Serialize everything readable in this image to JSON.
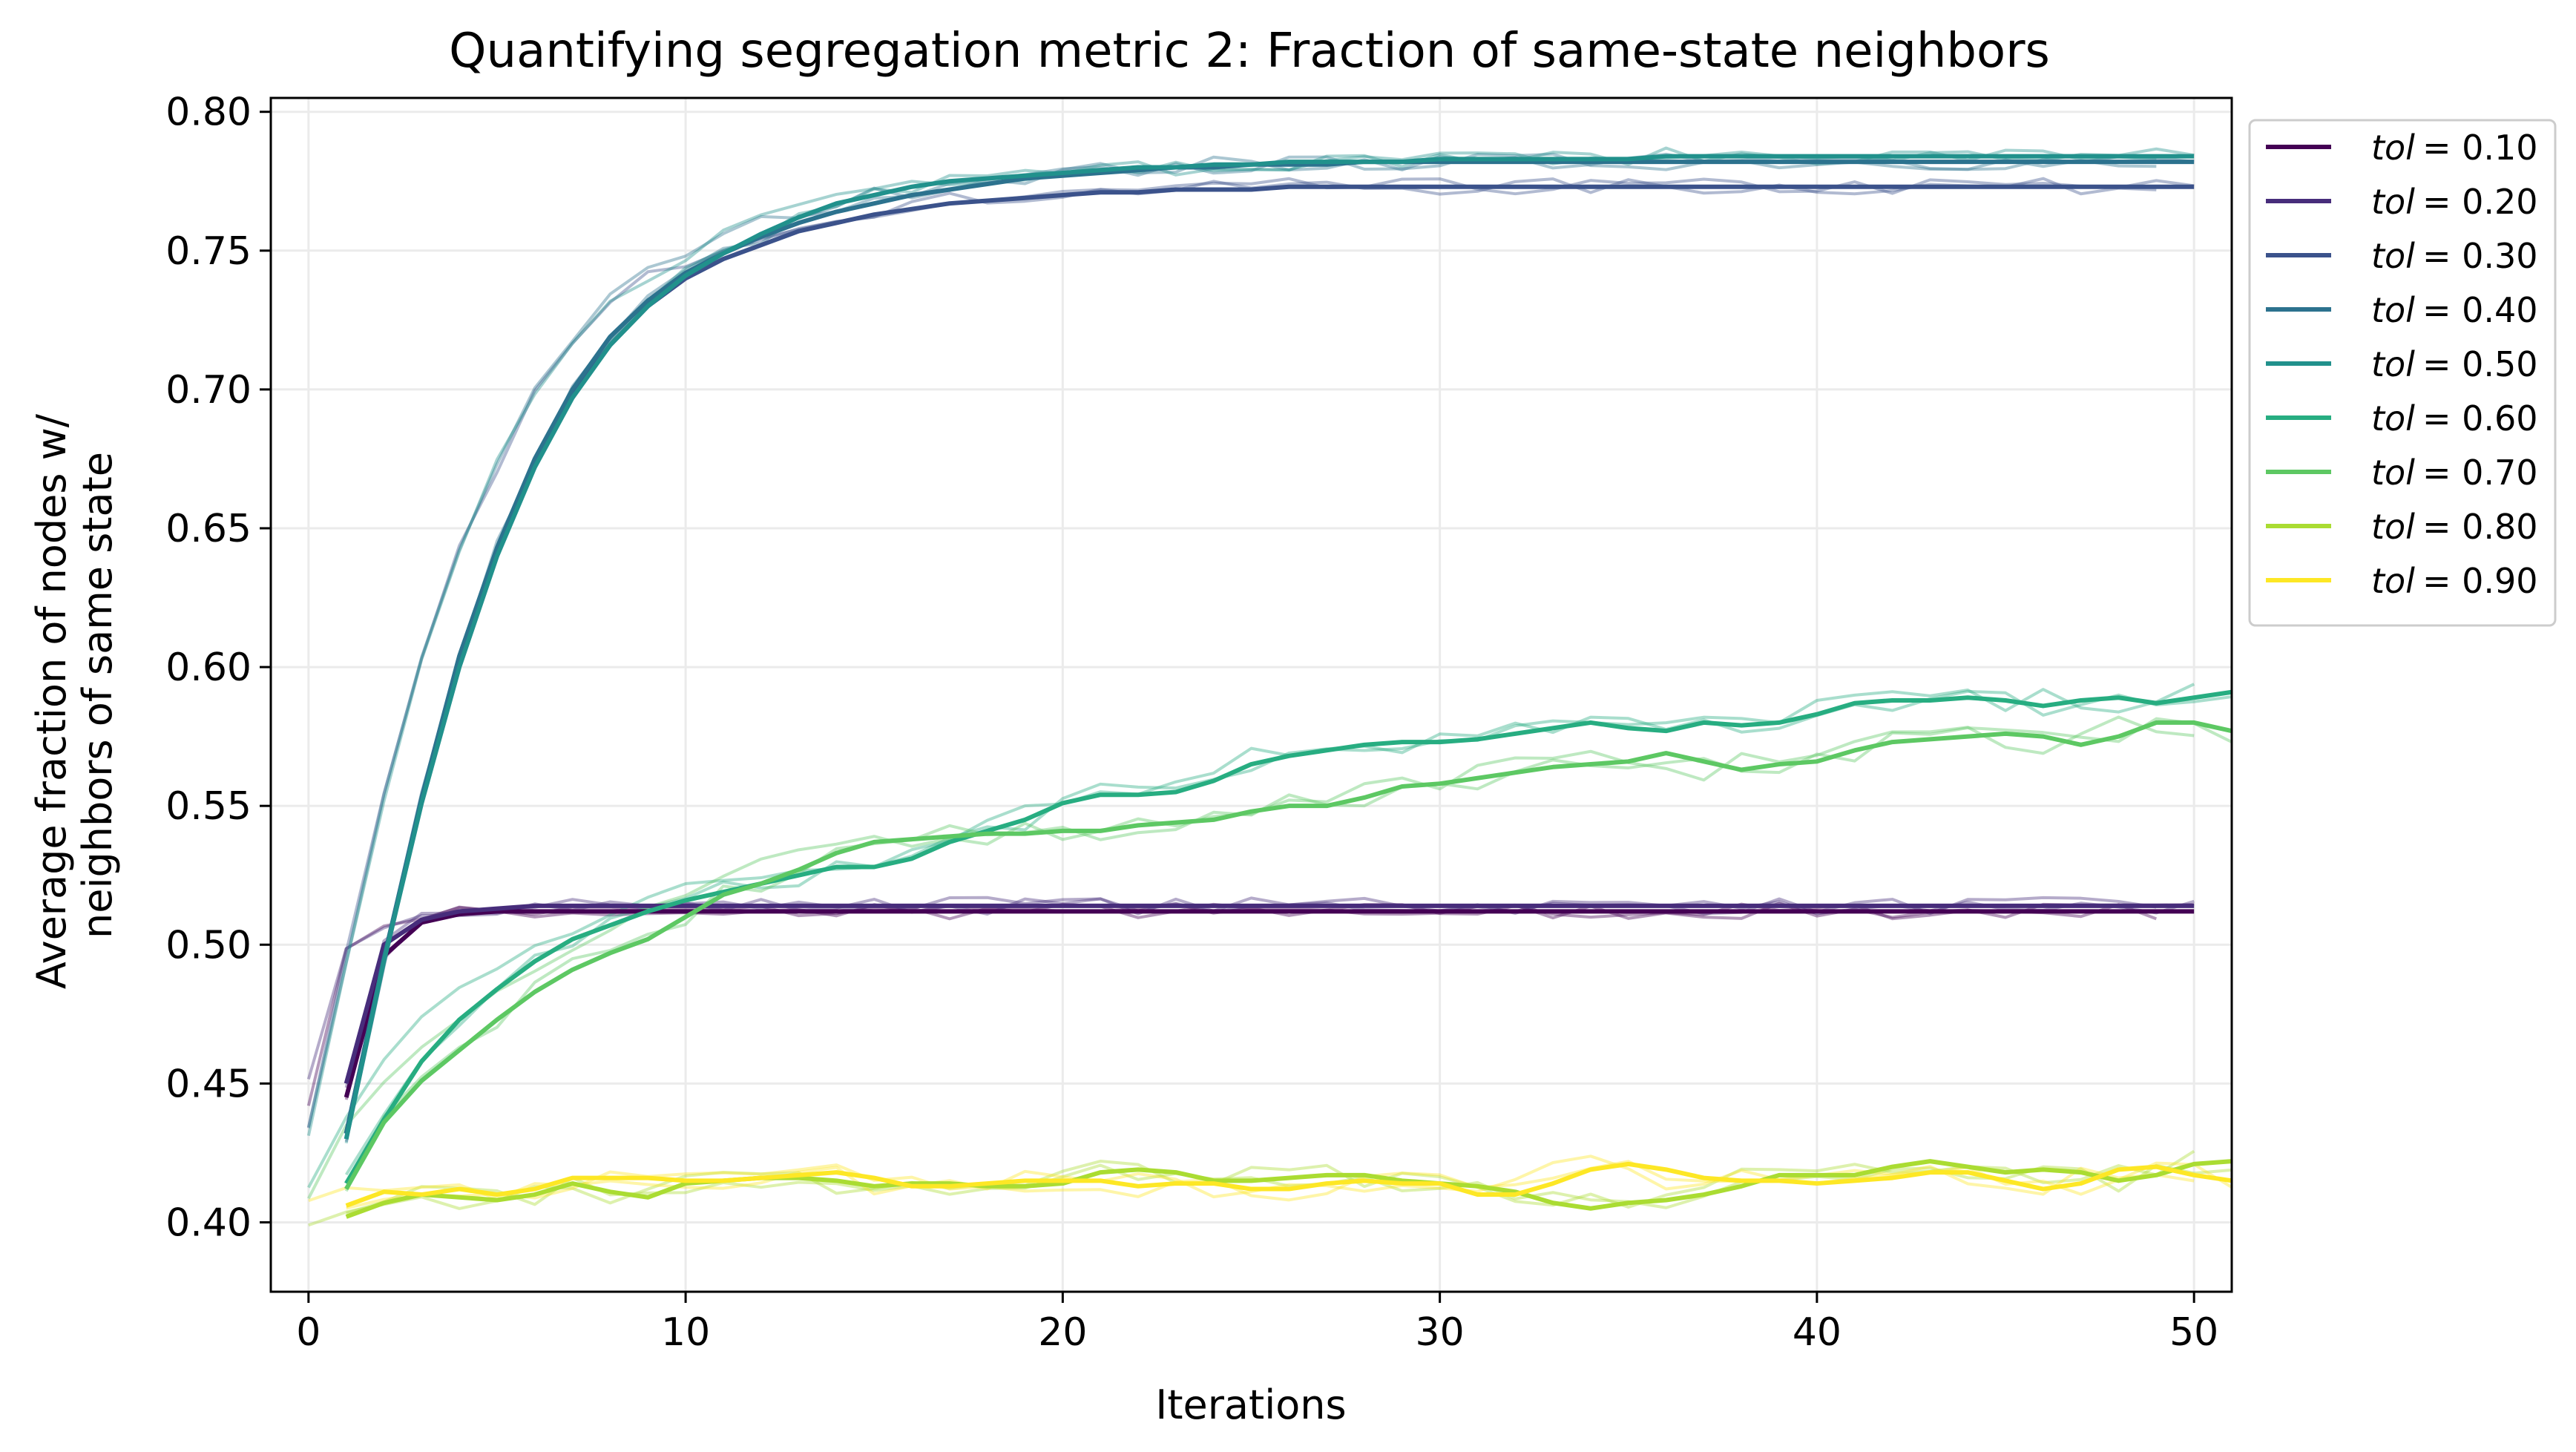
{
  "chart_data": {
    "type": "line",
    "title": "Quantifying segregation metric 2: Fraction of same-state neighbors",
    "xlabel": "Iterations",
    "ylabel_lines": [
      "Average fraction of nodes w/",
      "neighbors of same state"
    ],
    "xlim": [
      -1,
      51
    ],
    "ylim": [
      0.375,
      0.805
    ],
    "xticks": [
      0,
      10,
      20,
      30,
      40,
      50
    ],
    "yticks": [
      0.4,
      0.45,
      0.5,
      0.55,
      0.6,
      0.65,
      0.7,
      0.75,
      0.8
    ],
    "ytick_labels": [
      "0.40",
      "0.45",
      "0.50",
      "0.55",
      "0.60",
      "0.65",
      "0.70",
      "0.75",
      "0.80"
    ],
    "grid": true,
    "legend_position": "outside-right-top",
    "series": [
      {
        "name": "tol = 0.10",
        "legend_var": "tol",
        "legend_val": "= 0.10",
        "color": "#440154",
        "x_start": 1,
        "values": [
          0.445,
          0.496,
          0.508,
          0.511,
          0.512,
          0.512,
          0.512,
          0.512,
          0.512,
          0.512,
          0.512,
          0.512,
          0.512,
          0.512,
          0.512,
          0.512,
          0.512,
          0.512,
          0.512,
          0.512,
          0.512,
          0.512,
          0.512,
          0.512,
          0.512,
          0.512,
          0.512,
          0.512,
          0.512,
          0.512,
          0.512,
          0.512,
          0.512,
          0.512,
          0.512,
          0.512,
          0.512,
          0.512,
          0.512,
          0.512,
          0.512,
          0.512,
          0.512,
          0.512,
          0.512,
          0.512,
          0.512,
          0.512,
          0.512,
          0.512
        ]
      },
      {
        "name": "tol = 0.20",
        "legend_var": "tol",
        "legend_val": "= 0.20",
        "color": "#472d7b",
        "x_start": 1,
        "values": [
          0.45,
          0.5,
          0.509,
          0.512,
          0.513,
          0.514,
          0.514,
          0.514,
          0.514,
          0.514,
          0.514,
          0.514,
          0.514,
          0.514,
          0.514,
          0.514,
          0.514,
          0.514,
          0.514,
          0.514,
          0.514,
          0.514,
          0.514,
          0.514,
          0.514,
          0.514,
          0.514,
          0.514,
          0.514,
          0.514,
          0.514,
          0.514,
          0.514,
          0.514,
          0.514,
          0.514,
          0.514,
          0.514,
          0.514,
          0.514,
          0.514,
          0.514,
          0.514,
          0.514,
          0.514,
          0.514,
          0.514,
          0.514,
          0.514,
          0.514
        ]
      },
      {
        "name": "tol = 0.30",
        "legend_var": "tol",
        "legend_val": "= 0.30",
        "color": "#3b528b",
        "x_start": 1,
        "values": [
          0.432,
          0.495,
          0.552,
          0.602,
          0.641,
          0.673,
          0.698,
          0.716,
          0.73,
          0.74,
          0.747,
          0.752,
          0.757,
          0.76,
          0.763,
          0.765,
          0.767,
          0.768,
          0.769,
          0.77,
          0.771,
          0.771,
          0.772,
          0.772,
          0.772,
          0.773,
          0.773,
          0.773,
          0.773,
          0.773,
          0.773,
          0.773,
          0.773,
          0.773,
          0.773,
          0.773,
          0.773,
          0.773,
          0.773,
          0.773,
          0.773,
          0.773,
          0.773,
          0.773,
          0.773,
          0.773,
          0.773,
          0.773,
          0.773,
          0.773
        ]
      },
      {
        "name": "tol = 0.40",
        "legend_var": "tol",
        "legend_val": "= 0.40",
        "color": "#2c728e",
        "x_start": 1,
        "values": [
          0.432,
          0.495,
          0.553,
          0.604,
          0.643,
          0.675,
          0.7,
          0.719,
          0.732,
          0.742,
          0.749,
          0.755,
          0.76,
          0.764,
          0.767,
          0.77,
          0.772,
          0.774,
          0.776,
          0.777,
          0.778,
          0.779,
          0.78,
          0.78,
          0.781,
          0.781,
          0.781,
          0.782,
          0.782,
          0.782,
          0.782,
          0.782,
          0.782,
          0.782,
          0.782,
          0.782,
          0.782,
          0.782,
          0.782,
          0.782,
          0.782,
          0.782,
          0.782,
          0.782,
          0.782,
          0.782,
          0.782,
          0.782,
          0.782,
          0.782
        ]
      },
      {
        "name": "tol = 0.50",
        "legend_var": "tol",
        "legend_val": "= 0.50",
        "color": "#21918c",
        "x_start": 1,
        "values": [
          0.43,
          0.494,
          0.551,
          0.6,
          0.64,
          0.672,
          0.697,
          0.716,
          0.73,
          0.741,
          0.749,
          0.756,
          0.762,
          0.767,
          0.77,
          0.773,
          0.775,
          0.776,
          0.777,
          0.778,
          0.779,
          0.78,
          0.78,
          0.781,
          0.781,
          0.782,
          0.782,
          0.782,
          0.782,
          0.783,
          0.783,
          0.783,
          0.783,
          0.783,
          0.783,
          0.784,
          0.784,
          0.784,
          0.784,
          0.784,
          0.784,
          0.784,
          0.784,
          0.784,
          0.784,
          0.784,
          0.784,
          0.784,
          0.784,
          0.784
        ]
      },
      {
        "name": "tol = 0.60",
        "legend_var": "tol",
        "legend_val": "= 0.60",
        "color": "#27ad81",
        "x_start": 1,
        "values": [
          0.414,
          0.437,
          0.458,
          0.473,
          0.484,
          0.494,
          0.502,
          0.507,
          0.512,
          0.516,
          0.519,
          0.522,
          0.525,
          0.528,
          0.528,
          0.531,
          0.537,
          0.541,
          0.545,
          0.551,
          0.554,
          0.554,
          0.555,
          0.559,
          0.565,
          0.568,
          0.57,
          0.572,
          0.573,
          0.573,
          0.574,
          0.576,
          0.578,
          0.58,
          0.578,
          0.577,
          0.58,
          0.579,
          0.58,
          0.583,
          0.587,
          0.588,
          0.588,
          0.589,
          0.588,
          0.586,
          0.588,
          0.589,
          0.587,
          0.589,
          0.591
        ]
      },
      {
        "name": "tol = 0.70",
        "legend_var": "tol",
        "legend_val": "= 0.70",
        "color": "#5dc863",
        "x_start": 1,
        "values": [
          0.412,
          0.436,
          0.451,
          0.462,
          0.473,
          0.483,
          0.491,
          0.497,
          0.502,
          0.51,
          0.518,
          0.522,
          0.527,
          0.533,
          0.537,
          0.538,
          0.539,
          0.54,
          0.54,
          0.541,
          0.541,
          0.543,
          0.544,
          0.545,
          0.548,
          0.55,
          0.55,
          0.553,
          0.557,
          0.558,
          0.56,
          0.562,
          0.564,
          0.565,
          0.566,
          0.569,
          0.566,
          0.563,
          0.565,
          0.566,
          0.57,
          0.573,
          0.574,
          0.575,
          0.576,
          0.575,
          0.572,
          0.575,
          0.58,
          0.58,
          0.577
        ]
      },
      {
        "name": "tol = 0.80",
        "legend_var": "tol",
        "legend_val": "= 0.80",
        "color": "#aadc32",
        "x_start": 1,
        "values": [
          0.402,
          0.407,
          0.41,
          0.409,
          0.408,
          0.41,
          0.414,
          0.411,
          0.409,
          0.414,
          0.415,
          0.416,
          0.416,
          0.415,
          0.413,
          0.414,
          0.414,
          0.413,
          0.413,
          0.414,
          0.418,
          0.419,
          0.418,
          0.415,
          0.415,
          0.416,
          0.417,
          0.417,
          0.415,
          0.414,
          0.413,
          0.411,
          0.407,
          0.405,
          0.407,
          0.408,
          0.41,
          0.413,
          0.417,
          0.417,
          0.417,
          0.42,
          0.422,
          0.42,
          0.418,
          0.419,
          0.418,
          0.415,
          0.417,
          0.421,
          0.422
        ]
      },
      {
        "name": "tol = 0.90",
        "legend_var": "tol",
        "legend_val": "= 0.90",
        "color": "#fde725",
        "x_start": 1,
        "values": [
          0.406,
          0.411,
          0.41,
          0.412,
          0.41,
          0.412,
          0.416,
          0.416,
          0.416,
          0.415,
          0.415,
          0.416,
          0.417,
          0.418,
          0.416,
          0.413,
          0.413,
          0.414,
          0.415,
          0.415,
          0.415,
          0.413,
          0.414,
          0.414,
          0.412,
          0.412,
          0.414,
          0.415,
          0.414,
          0.414,
          0.41,
          0.41,
          0.414,
          0.419,
          0.421,
          0.419,
          0.416,
          0.415,
          0.415,
          0.414,
          0.415,
          0.416,
          0.418,
          0.418,
          0.415,
          0.412,
          0.414,
          0.419,
          0.42,
          0.417,
          0.415
        ]
      }
    ]
  }
}
